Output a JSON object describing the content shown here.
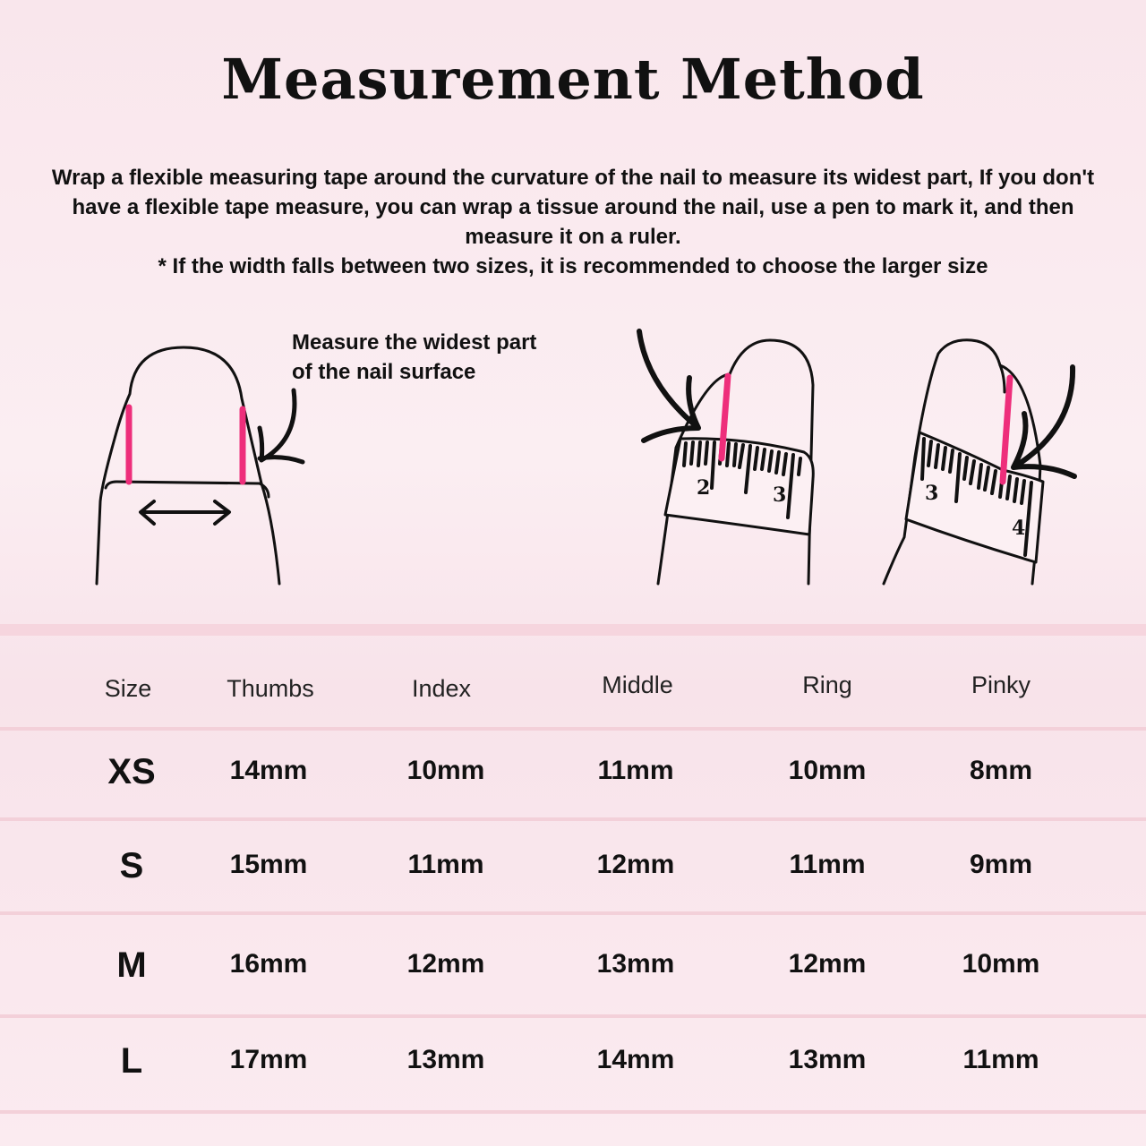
{
  "title": "Measurement Method",
  "description": "Wrap a flexible measuring tape around the curvature of the nail to measure its widest part, If you don't have a flexible tape measure, you can wrap a tissue around the nail, use a pen to mark it, and then measure it on a ruler.",
  "note": "* If the width falls between two sizes, it is recommended to choose the larger size",
  "callout": {
    "line1": "Measure the widest part",
    "line2": "of the nail surface"
  },
  "ruler_labels": {
    "left_a": "2",
    "left_b": "3",
    "right_a": "3",
    "right_b": "4"
  },
  "colors": {
    "accent": "#ee2e7b",
    "background": "#fbe9ee",
    "divider": "#f3d0d9"
  },
  "table": {
    "headers": [
      "Size",
      "Thumbs",
      "Index",
      "Middle",
      "Ring",
      "Pinky"
    ],
    "rows": [
      [
        "XS",
        "14mm",
        "10mm",
        "11mm",
        "10mm",
        "8mm"
      ],
      [
        "S",
        "15mm",
        "11mm",
        "12mm",
        "11mm",
        "9mm"
      ],
      [
        "M",
        "16mm",
        "12mm",
        "13mm",
        "12mm",
        "10mm"
      ],
      [
        "L",
        "17mm",
        "13mm",
        "14mm",
        "13mm",
        "11mm"
      ]
    ]
  }
}
